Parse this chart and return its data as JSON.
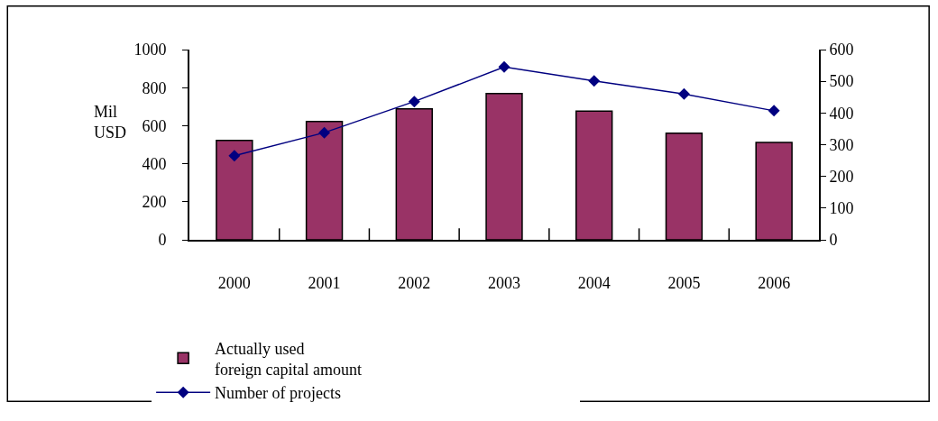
{
  "chart_data": {
    "type": "bar",
    "ylabel": "Mil USD",
    "categories": [
      "2000",
      "2001",
      "2002",
      "2003",
      "2004",
      "2005",
      "2006"
    ],
    "series": [
      {
        "name": "Actually used foreign capital amount",
        "color": "#993366",
        "values": [
          523,
          622,
          688,
          769,
          677,
          560,
          512
        ]
      },
      {
        "name": "Number of projects",
        "type": "line",
        "axis": "y2",
        "color": "#000080",
        "marker": "diamond",
        "values": [
          265,
          338,
          436,
          545,
          501,
          460,
          407
        ]
      }
    ],
    "ylim": [
      0,
      1000
    ],
    "yticks": [
      0,
      200,
      400,
      600,
      800,
      1000
    ],
    "y2lim": [
      0,
      600
    ],
    "y2ticks": [
      0,
      100,
      200,
      300,
      400,
      500,
      600
    ],
    "grid": false,
    "legend": "bottom"
  }
}
